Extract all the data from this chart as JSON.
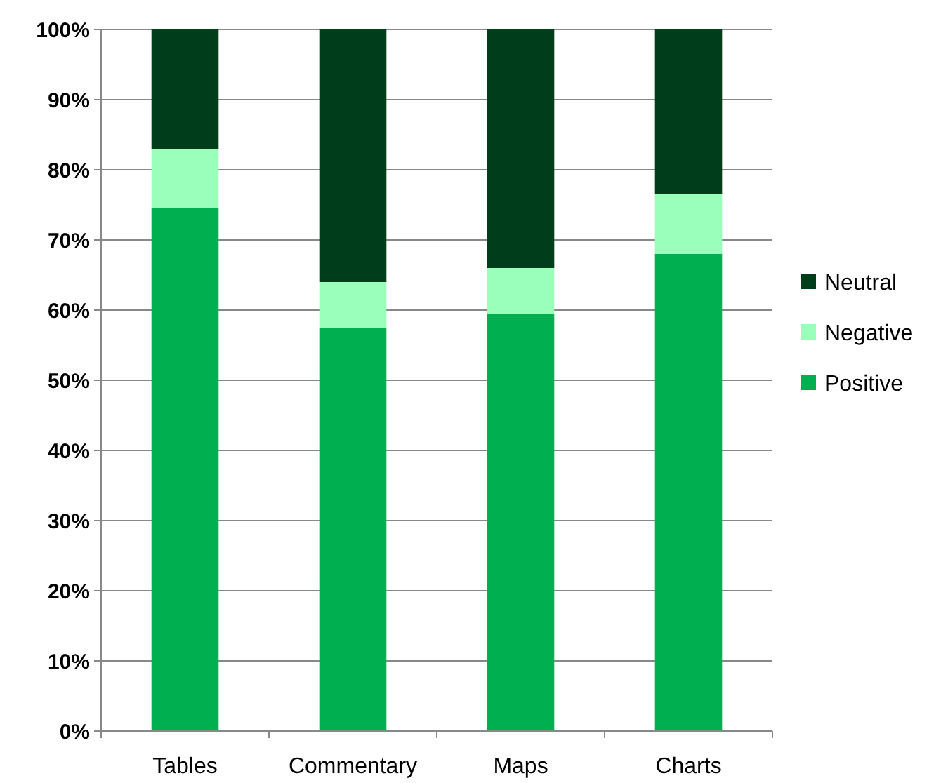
{
  "chart_data": {
    "type": "bar",
    "stacked": true,
    "categories": [
      "Tables",
      "Commentary",
      "Maps",
      "Charts"
    ],
    "series": [
      {
        "name": "Positive",
        "color": "#00b050",
        "values": [
          74.5,
          57.5,
          59.5,
          68
        ]
      },
      {
        "name": "Negative",
        "color": "#99ffbb",
        "values": [
          8.5,
          6.5,
          6.5,
          8.5
        ]
      },
      {
        "name": "Neutral",
        "color": "#003d1a",
        "values": [
          17,
          36,
          34,
          23.5
        ]
      }
    ],
    "ylim": [
      0,
      100
    ],
    "yticks": [
      {
        "value": 0,
        "label": "0%"
      },
      {
        "value": 10,
        "label": "10%"
      },
      {
        "value": 20,
        "label": "20%"
      },
      {
        "value": 30,
        "label": "30%"
      },
      {
        "value": 40,
        "label": "40%"
      },
      {
        "value": 50,
        "label": "50%"
      },
      {
        "value": 60,
        "label": "60%"
      },
      {
        "value": 70,
        "label": "70%"
      },
      {
        "value": 80,
        "label": "80%"
      },
      {
        "value": 90,
        "label": "90%"
      },
      {
        "value": 100,
        "label": "100%"
      }
    ],
    "grid": "y",
    "legend": "right"
  }
}
